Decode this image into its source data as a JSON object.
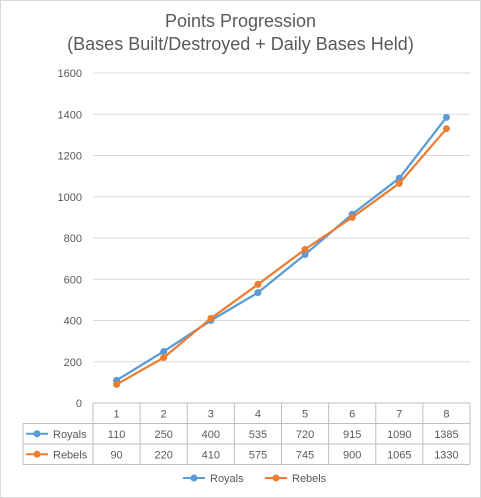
{
  "chart_data": {
    "type": "line",
    "title_line1": "Points Progression",
    "title_line2": "(Bases Built/Destroyed + Daily Bases Held)",
    "categories": [
      "1",
      "2",
      "3",
      "4",
      "5",
      "6",
      "7",
      "8"
    ],
    "ylim": [
      0,
      1600
    ],
    "yticks": [
      0,
      200,
      400,
      600,
      800,
      1000,
      1200,
      1400,
      1600
    ],
    "grid": true,
    "legend": "bottom",
    "data_table": true,
    "series": [
      {
        "name": "Royals",
        "color": "#5b9bd5",
        "values": [
          110,
          250,
          400,
          535,
          720,
          915,
          1090,
          1385
        ]
      },
      {
        "name": "Rebels",
        "color": "#ed7d31",
        "values": [
          90,
          220,
          410,
          575,
          745,
          900,
          1065,
          1330
        ]
      }
    ]
  }
}
